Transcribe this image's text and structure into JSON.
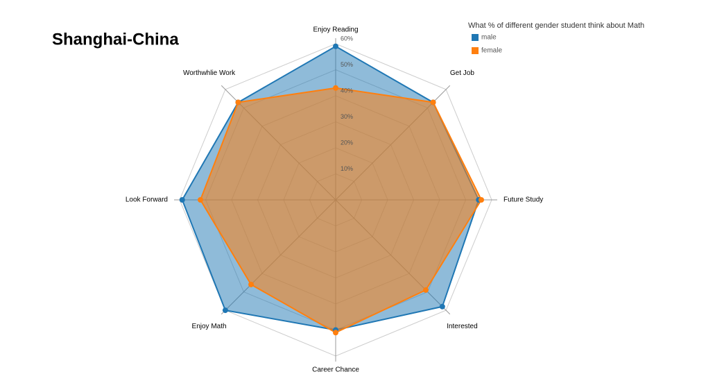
{
  "chart_data": {
    "type": "radar",
    "title": "Shanghai-China",
    "legend_title": "What % of different gender student think about Math",
    "categories": [
      "Enjoy Reading",
      "Get Job",
      "Future Study",
      "Interested",
      "Career Chance",
      "Enjoy Math",
      "Look Forward",
      "Worthwhlie Work"
    ],
    "series": [
      {
        "name": "male",
        "color": "#1f77b4",
        "values": [
          59,
          53,
          55,
          58,
          50,
          60,
          59,
          53
        ]
      },
      {
        "name": "female",
        "color": "#ff7f0e",
        "values": [
          43,
          53,
          56,
          49,
          51,
          46,
          52,
          53
        ]
      }
    ],
    "ylim": [
      0,
      60
    ],
    "yticks": [
      {
        "value": 10,
        "label": "10%"
      },
      {
        "value": 20,
        "label": "20%"
      },
      {
        "value": 30,
        "label": "30%"
      },
      {
        "value": 40,
        "label": "40%"
      },
      {
        "value": 50,
        "label": "50%"
      },
      {
        "value": 60,
        "label": "60%"
      }
    ],
    "grid": true
  }
}
